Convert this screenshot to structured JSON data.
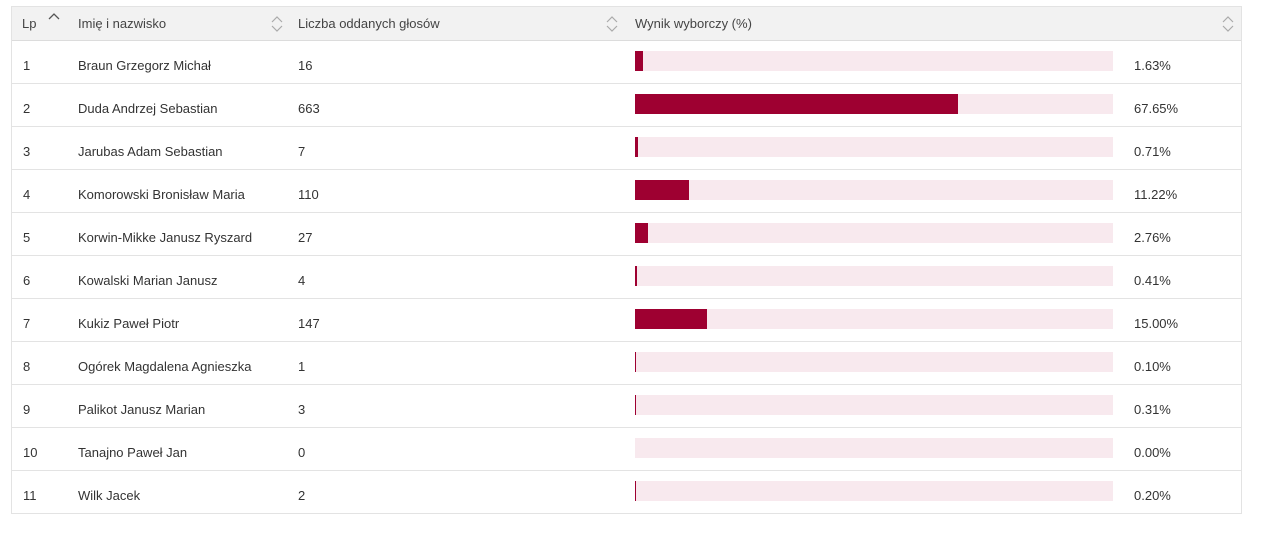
{
  "header": {
    "lp": "Lp",
    "name": "Imię i nazwisko",
    "votes": "Liczba oddanych głosów",
    "result": "Wynik wyborczy (%)"
  },
  "colors": {
    "bar": "#9e0031",
    "bar_bg": "#f8e9ee"
  },
  "rows": [
    {
      "lp": "1",
      "name": "Braun Grzegorz Michał",
      "votes": "16",
      "pct": "1.63%",
      "value": 1.63
    },
    {
      "lp": "2",
      "name": "Duda Andrzej Sebastian",
      "votes": "663",
      "pct": "67.65%",
      "value": 67.65
    },
    {
      "lp": "3",
      "name": "Jarubas Adam Sebastian",
      "votes": "7",
      "pct": "0.71%",
      "value": 0.71
    },
    {
      "lp": "4",
      "name": "Komorowski Bronisław Maria",
      "votes": "110",
      "pct": "11.22%",
      "value": 11.22
    },
    {
      "lp": "5",
      "name": "Korwin-Mikke Janusz Ryszard",
      "votes": "27",
      "pct": "2.76%",
      "value": 2.76
    },
    {
      "lp": "6",
      "name": "Kowalski Marian Janusz",
      "votes": "4",
      "pct": "0.41%",
      "value": 0.41
    },
    {
      "lp": "7",
      "name": "Kukiz Paweł Piotr",
      "votes": "147",
      "pct": "15.00%",
      "value": 15.0
    },
    {
      "lp": "8",
      "name": "Ogórek Magdalena Agnieszka",
      "votes": "1",
      "pct": "0.10%",
      "value": 0.1
    },
    {
      "lp": "9",
      "name": "Palikot Janusz Marian",
      "votes": "3",
      "pct": "0.31%",
      "value": 0.31
    },
    {
      "lp": "10",
      "name": "Tanajno Paweł Jan",
      "votes": "0",
      "pct": "0.00%",
      "value": 0.0
    },
    {
      "lp": "11",
      "name": "Wilk Jacek",
      "votes": "2",
      "pct": "0.20%",
      "value": 0.2
    }
  ]
}
